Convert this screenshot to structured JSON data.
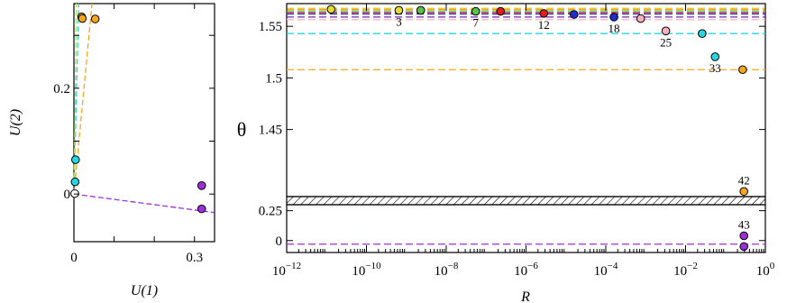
{
  "chart_data": [
    {
      "type": "scatter",
      "xlabel": "U(1)",
      "ylabel": "U(2)",
      "xlim": [
        0,
        0.35
      ],
      "ylim": [
        -0.09,
        0.36
      ],
      "x_ticks": [
        {
          "v": 0,
          "label": "0"
        },
        {
          "v": 0.1,
          "label": ""
        },
        {
          "v": 0.2,
          "label": ""
        },
        {
          "v": 0.3,
          "label": "0.3"
        }
      ],
      "x_tick_labels": [
        {
          "v": 0,
          "label": "0"
        },
        {
          "v": 0.3,
          "label": "0.3"
        }
      ],
      "y_ticks": [
        {
          "v": 0,
          "label": "0"
        },
        {
          "v": 0.1,
          "label": ""
        },
        {
          "v": 0.2,
          "label": "0.2"
        },
        {
          "v": 0.3,
          "label": ""
        }
      ],
      "points": [
        {
          "x": 0.019,
          "y": 0.335,
          "color": "#f5a623"
        },
        {
          "x": 0.021,
          "y": 0.332,
          "color": "#f5a623"
        },
        {
          "x": 0.053,
          "y": 0.331,
          "color": "#f5a623"
        },
        {
          "x": 0.004,
          "y": 0.065,
          "color": "#2ad4e0"
        },
        {
          "x": 0.003,
          "y": 0.023,
          "color": "#2ad4e0"
        },
        {
          "x": 0.002,
          "y": 0.001,
          "color": "#ffffff"
        },
        {
          "x": 0.318,
          "y": 0.016,
          "color": "#9b30d9"
        },
        {
          "x": 0.318,
          "y": -0.028,
          "color": "#9b30d9"
        }
      ],
      "lines": [
        {
          "color": "#f5a623",
          "from": [
            0,
            0
          ],
          "to": [
            0.045,
            0.36
          ]
        },
        {
          "color": "#2ad4e0",
          "from": [
            0,
            0
          ],
          "to": [
            0.012,
            0.36
          ]
        },
        {
          "color": "#b0e060",
          "from": [
            0,
            0
          ],
          "to": [
            0.006,
            0.36
          ]
        },
        {
          "color": "#9b30d9",
          "from": [
            0,
            0
          ],
          "to": [
            0.35,
            -0.035
          ]
        }
      ]
    },
    {
      "type": "scatter",
      "xlabel": "R",
      "ylabel": "θ",
      "xscale": "log",
      "xlim": [
        1e-12,
        1
      ],
      "x_ticks": [
        {
          "v": 1e-12,
          "base": "10",
          "exp": "−12"
        },
        {
          "v": 1e-10,
          "base": "10",
          "exp": "−10"
        },
        {
          "v": 1e-08,
          "base": "10",
          "exp": "−8"
        },
        {
          "v": 1e-06,
          "base": "10",
          "exp": "−6"
        },
        {
          "v": 0.0001,
          "base": "10",
          "exp": "−4"
        },
        {
          "v": 0.01,
          "base": "10",
          "exp": "−2"
        },
        {
          "v": 1,
          "base": "10",
          "exp": "0"
        }
      ],
      "upper_panel": {
        "ylim": [
          1.385,
          1.572
        ],
        "y_ticks": [
          {
            "v": 1.45,
            "label": "1.45"
          },
          {
            "v": 1.5,
            "label": "1.5"
          },
          {
            "v": 1.55,
            "label": "1.55"
          }
        ],
        "levels": [
          {
            "y": 1.5675,
            "color": "#e8d833"
          },
          {
            "y": 1.5665,
            "color": "#f5a623"
          },
          {
            "y": 1.565,
            "color": "#5ac24a"
          },
          {
            "y": 1.5635,
            "color": "#e02020"
          },
          {
            "y": 1.562,
            "color": "#1f2fc8"
          },
          {
            "y": 1.559,
            "color": "#6a2bb0"
          },
          {
            "y": 1.5565,
            "color": "#ffb0c0"
          },
          {
            "y": 1.543,
            "color": "#2ad4e0"
          },
          {
            "y": 1.508,
            "color": "#f5a623"
          }
        ],
        "points": [
          {
            "x": 1.3e-11,
            "y": 1.5665,
            "color": "#e8d833",
            "label": ""
          },
          {
            "x": 6.5e-10,
            "y": 1.5655,
            "color": "#e8d833",
            "label": "3"
          },
          {
            "x": 2.3e-09,
            "y": 1.5655,
            "color": "#5ac24a",
            "label": ""
          },
          {
            "x": 5.5e-08,
            "y": 1.5645,
            "color": "#5ac24a",
            "label": "7"
          },
          {
            "x": 2.3e-07,
            "y": 1.5645,
            "color": "#e02020",
            "label": ""
          },
          {
            "x": 2.8e-06,
            "y": 1.5625,
            "color": "#e02020",
            "label": "12"
          },
          {
            "x": 1.6e-05,
            "y": 1.5615,
            "color": "#1f2fc8",
            "label": ""
          },
          {
            "x": 0.00016,
            "y": 1.559,
            "color": "#1f2fc8",
            "label": "18"
          },
          {
            "x": 0.00075,
            "y": 1.5575,
            "color": "#ffb0c0",
            "label": ""
          },
          {
            "x": 0.0032,
            "y": 1.5455,
            "color": "#ffb0c0",
            "label": "25"
          },
          {
            "x": 0.026,
            "y": 1.543,
            "color": "#2ad4e0",
            "label": ""
          },
          {
            "x": 0.055,
            "y": 1.5205,
            "color": "#2ad4e0",
            "label": "33"
          },
          {
            "x": 0.27,
            "y": 1.508,
            "color": "#f5a623",
            "label": ""
          },
          {
            "x": 0.29,
            "y": 1.39,
            "color": "#f5a623",
            "label": "42"
          }
        ]
      },
      "lower_panel": {
        "ylim": [
          -0.1,
          0.3
        ],
        "y_ticks": [
          {
            "v": 0,
            "label": "0"
          },
          {
            "v": 0.25,
            "label": "0.25"
          }
        ],
        "levels": [
          {
            "y": -0.03,
            "color": "#9b30d9"
          }
        ],
        "points": [
          {
            "x": 0.29,
            "y": 0.04,
            "color": "#9b30d9",
            "label": "43"
          },
          {
            "x": 0.29,
            "y": -0.05,
            "color": "#9b30d9",
            "label": ""
          }
        ]
      }
    }
  ]
}
